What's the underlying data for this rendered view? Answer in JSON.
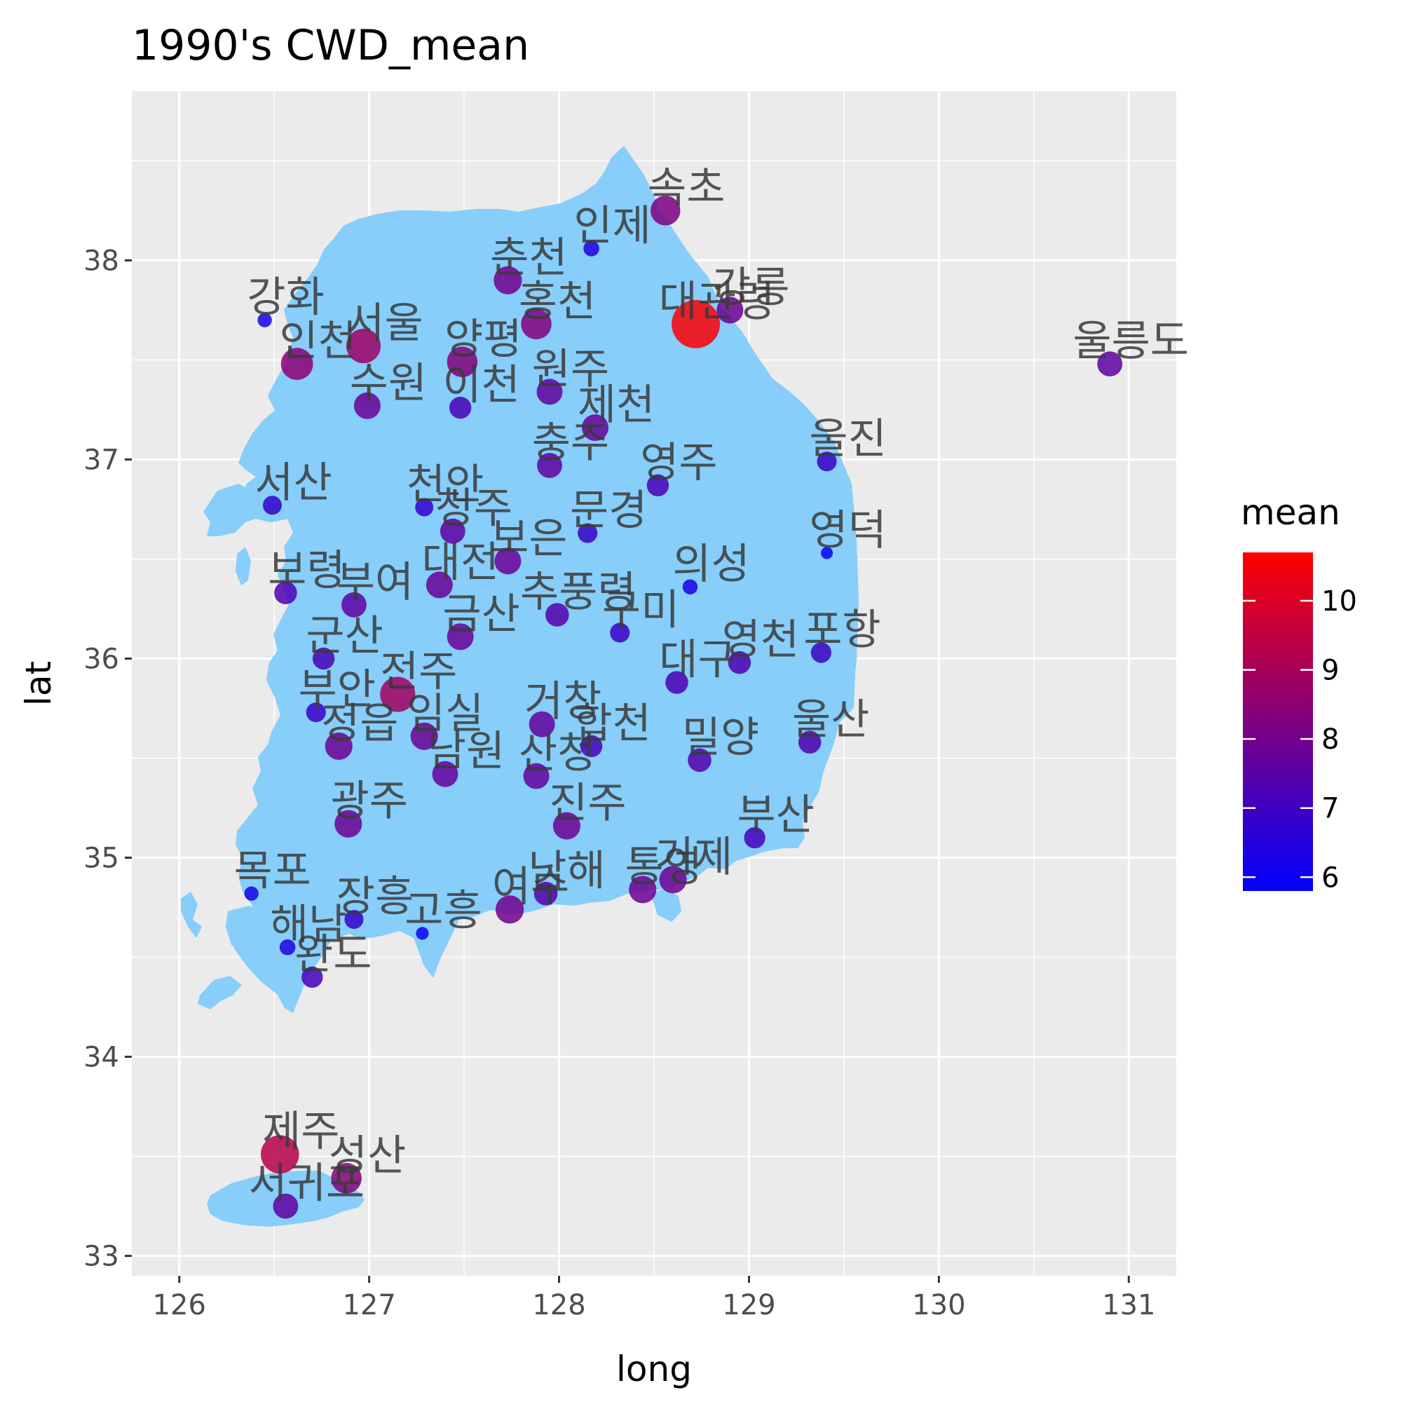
{
  "chart_data": {
    "type": "map-scatter",
    "title": "1990's CWD_mean",
    "xlabel": "long",
    "ylabel": "lat",
    "xlim": [
      125.75,
      131.25
    ],
    "ylim": [
      32.9,
      38.85
    ],
    "x_ticks": [
      126,
      127,
      128,
      129,
      130,
      131
    ],
    "y_ticks": [
      33,
      34,
      35,
      36,
      37,
      38
    ],
    "grid": true,
    "land_color": "#87CEFA",
    "panel_color": "#EBEBEB",
    "legend": {
      "title": "mean",
      "position": "right",
      "low_color": "#0000FF",
      "high_color": "#FF0000",
      "range": [
        5.8,
        10.7
      ],
      "ticks": [
        6,
        7,
        8,
        9,
        10
      ]
    },
    "points": [
      {
        "name": "속초",
        "long": 128.56,
        "lat": 38.25,
        "mean": 8.2
      },
      {
        "name": "인제",
        "long": 128.17,
        "lat": 38.06,
        "mean": 6.4
      },
      {
        "name": "춘천",
        "long": 127.73,
        "lat": 37.9,
        "mean": 8.0
      },
      {
        "name": "강릉",
        "long": 128.9,
        "lat": 37.75,
        "mean": 7.8
      },
      {
        "name": "대관령",
        "long": 128.72,
        "lat": 37.68,
        "mean": 10.6
      },
      {
        "name": "홍천",
        "long": 127.88,
        "lat": 37.68,
        "mean": 8.3
      },
      {
        "name": "강화",
        "long": 126.45,
        "lat": 37.7,
        "mean": 6.2
      },
      {
        "name": "서울",
        "long": 126.97,
        "lat": 37.57,
        "mean": 8.8
      },
      {
        "name": "인천",
        "long": 126.62,
        "lat": 37.48,
        "mean": 8.5
      },
      {
        "name": "양평",
        "long": 127.49,
        "lat": 37.49,
        "mean": 8.3
      },
      {
        "name": "원주",
        "long": 127.95,
        "lat": 37.34,
        "mean": 7.7
      },
      {
        "name": "수원",
        "long": 126.99,
        "lat": 37.27,
        "mean": 7.8
      },
      {
        "name": "이천",
        "long": 127.48,
        "lat": 37.26,
        "mean": 7.2
      },
      {
        "name": "제천",
        "long": 128.19,
        "lat": 37.16,
        "mean": 7.8
      },
      {
        "name": "울릉도",
        "long": 130.9,
        "lat": 37.48,
        "mean": 7.6
      },
      {
        "name": "울진",
        "long": 129.41,
        "lat": 36.99,
        "mean": 6.9
      },
      {
        "name": "충주",
        "long": 127.95,
        "lat": 36.97,
        "mean": 7.6
      },
      {
        "name": "영주",
        "long": 128.52,
        "lat": 36.87,
        "mean": 7.2
      },
      {
        "name": "서산",
        "long": 126.49,
        "lat": 36.77,
        "mean": 6.8
      },
      {
        "name": "천안",
        "long": 127.29,
        "lat": 36.76,
        "mean": 6.7
      },
      {
        "name": "청주",
        "long": 127.44,
        "lat": 36.64,
        "mean": 7.6
      },
      {
        "name": "문경",
        "long": 128.15,
        "lat": 36.63,
        "mean": 6.9
      },
      {
        "name": "영덕",
        "long": 129.41,
        "lat": 36.53,
        "mean": 5.9
      },
      {
        "name": "보은",
        "long": 127.73,
        "lat": 36.49,
        "mean": 7.8
      },
      {
        "name": "대전",
        "long": 127.37,
        "lat": 36.37,
        "mean": 7.8
      },
      {
        "name": "의성",
        "long": 128.69,
        "lat": 36.36,
        "mean": 6.3
      },
      {
        "name": "보령",
        "long": 126.56,
        "lat": 36.33,
        "mean": 7.3
      },
      {
        "name": "부여",
        "long": 126.92,
        "lat": 36.27,
        "mean": 7.6
      },
      {
        "name": "추풍령",
        "long": 127.99,
        "lat": 36.22,
        "mean": 7.4
      },
      {
        "name": "구미",
        "long": 128.32,
        "lat": 36.13,
        "mean": 6.9
      },
      {
        "name": "금산",
        "long": 127.48,
        "lat": 36.11,
        "mean": 7.8
      },
      {
        "name": "포항",
        "long": 129.38,
        "lat": 36.03,
        "mean": 7.0
      },
      {
        "name": "군산",
        "long": 126.76,
        "lat": 36.0,
        "mean": 7.2
      },
      {
        "name": "영천",
        "long": 128.95,
        "lat": 35.98,
        "mean": 7.3
      },
      {
        "name": "대구",
        "long": 128.62,
        "lat": 35.88,
        "mean": 7.3
      },
      {
        "name": "전주",
        "long": 127.15,
        "lat": 35.82,
        "mean": 8.9
      },
      {
        "name": "부안",
        "long": 126.72,
        "lat": 35.73,
        "mean": 6.9
      },
      {
        "name": "거창",
        "long": 127.91,
        "lat": 35.67,
        "mean": 7.7
      },
      {
        "name": "임실",
        "long": 127.29,
        "lat": 35.61,
        "mean": 7.9
      },
      {
        "name": "정읍",
        "long": 126.84,
        "lat": 35.56,
        "mean": 7.9
      },
      {
        "name": "합천",
        "long": 128.17,
        "lat": 35.56,
        "mean": 7.2
      },
      {
        "name": "울산",
        "long": 129.32,
        "lat": 35.58,
        "mean": 7.3
      },
      {
        "name": "밀양",
        "long": 128.74,
        "lat": 35.49,
        "mean": 7.4
      },
      {
        "name": "남원",
        "long": 127.4,
        "lat": 35.42,
        "mean": 7.7
      },
      {
        "name": "산청",
        "long": 127.88,
        "lat": 35.41,
        "mean": 7.7
      },
      {
        "name": "광주",
        "long": 126.89,
        "lat": 35.17,
        "mean": 7.9
      },
      {
        "name": "진주",
        "long": 128.04,
        "lat": 35.16,
        "mean": 7.9
      },
      {
        "name": "부산",
        "long": 129.03,
        "lat": 35.1,
        "mean": 7.1
      },
      {
        "name": "거제",
        "long": 128.6,
        "lat": 34.89,
        "mean": 7.9
      },
      {
        "name": "통영",
        "long": 128.44,
        "lat": 34.84,
        "mean": 7.9
      },
      {
        "name": "남해",
        "long": 127.93,
        "lat": 34.82,
        "mean": 7.4
      },
      {
        "name": "목포",
        "long": 126.38,
        "lat": 34.82,
        "mean": 6.2
      },
      {
        "name": "여수",
        "long": 127.74,
        "lat": 34.74,
        "mean": 8.0
      },
      {
        "name": "장흥",
        "long": 126.92,
        "lat": 34.69,
        "mean": 6.8
      },
      {
        "name": "고흥",
        "long": 127.28,
        "lat": 34.62,
        "mean": 6.0
      },
      {
        "name": "해남",
        "long": 126.57,
        "lat": 34.55,
        "mean": 6.4
      },
      {
        "name": "완도",
        "long": 126.7,
        "lat": 34.4,
        "mean": 7.1
      },
      {
        "name": "제주",
        "long": 126.53,
        "lat": 33.51,
        "mean": 9.3
      },
      {
        "name": "성산",
        "long": 126.88,
        "lat": 33.39,
        "mean": 8.3
      },
      {
        "name": "서귀포",
        "long": 126.56,
        "lat": 33.25,
        "mean": 7.6
      }
    ]
  }
}
